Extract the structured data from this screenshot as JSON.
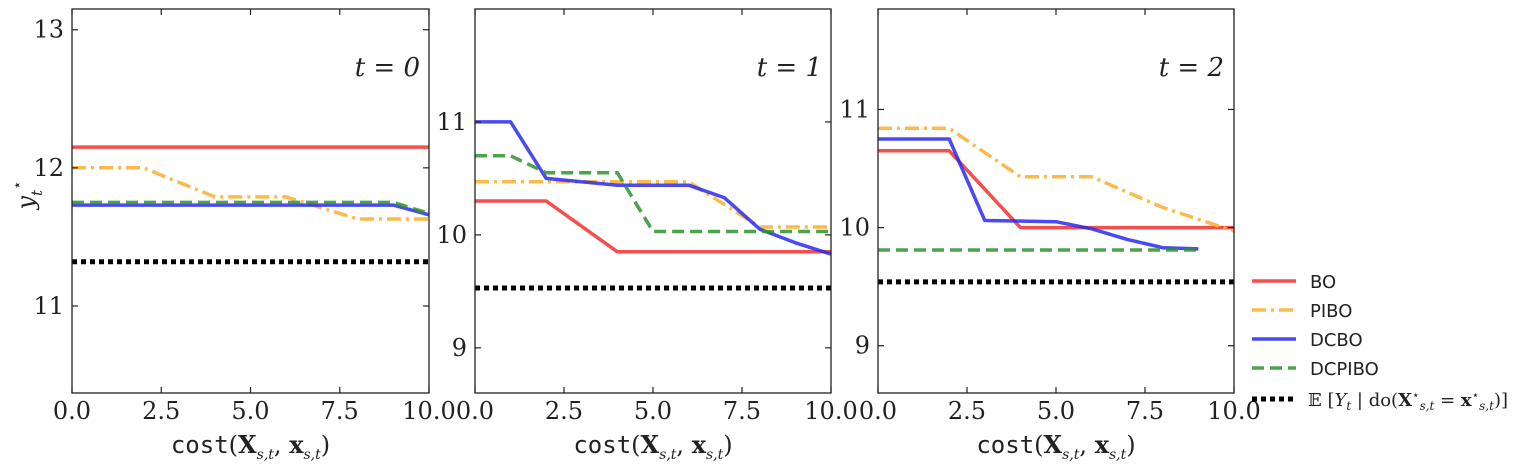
{
  "chart_data": [
    {
      "type": "line",
      "panel_label": "t = 0",
      "xlabel": "cost(X_{s,t}, x_{s,t})",
      "ylabel": "y_t^*",
      "xlim": [
        0,
        10
      ],
      "ylim": [
        10.37,
        13.15
      ],
      "xticks": [
        0,
        2.5,
        5,
        7.5,
        10
      ],
      "xtick_labels": [
        "0.0",
        "2.5",
        "5.0",
        "7.5",
        "10.0"
      ],
      "yticks": [
        11,
        12,
        13
      ],
      "ytick_labels": [
        "11",
        "12",
        "13"
      ],
      "series": [
        {
          "name": "BO",
          "x": [
            0,
            10
          ],
          "y": [
            12.15,
            12.15
          ]
        },
        {
          "name": "PIBO",
          "x": [
            0,
            2,
            4,
            6,
            8,
            10
          ],
          "y": [
            12.0,
            12.0,
            11.79,
            11.79,
            11.63,
            11.63
          ]
        },
        {
          "name": "DCBO",
          "x": [
            0,
            9,
            10
          ],
          "y": [
            11.73,
            11.73,
            11.66
          ]
        },
        {
          "name": "DCPIBO",
          "x": [
            0,
            9,
            10
          ],
          "y": [
            11.75,
            11.75,
            11.67
          ]
        },
        {
          "name": "E[Y_t | do(X*_{s,t} = x*_{s,t})]",
          "x": [
            0,
            10
          ],
          "y": [
            11.32,
            11.32
          ]
        }
      ]
    },
    {
      "type": "line",
      "panel_label": "t = 1",
      "xlabel": "cost(X_{s,t}, x_{s,t})",
      "xlim": [
        0,
        10
      ],
      "ylim": [
        8.6,
        12.0
      ],
      "xticks": [
        0,
        2.5,
        5,
        7.5,
        10
      ],
      "xtick_labels": [
        "0.0",
        "2.5",
        "5.0",
        "7.5",
        "10.0"
      ],
      "yticks": [
        9,
        10,
        11
      ],
      "ytick_labels": [
        "9",
        "10",
        "11"
      ],
      "series": [
        {
          "name": "BO",
          "x": [
            0,
            2,
            4,
            10
          ],
          "y": [
            10.3,
            10.3,
            9.85,
            9.85
          ]
        },
        {
          "name": "PIBO",
          "x": [
            0,
            2,
            6,
            8,
            10
          ],
          "y": [
            10.47,
            10.47,
            10.47,
            10.07,
            10.07
          ]
        },
        {
          "name": "DCBO",
          "x": [
            0,
            1,
            2,
            4,
            6,
            7,
            8,
            9,
            10
          ],
          "y": [
            11.0,
            11.0,
            10.5,
            10.44,
            10.44,
            10.33,
            10.05,
            9.93,
            9.83
          ]
        },
        {
          "name": "DCPIBO",
          "x": [
            0,
            1,
            2,
            4,
            5,
            10
          ],
          "y": [
            10.7,
            10.7,
            10.55,
            10.55,
            10.03,
            10.03
          ]
        },
        {
          "name": "E[Y_t | do(X*_{s,t} = x*_{s,t})]",
          "x": [
            0,
            10
          ],
          "y": [
            9.53,
            9.53
          ]
        }
      ]
    },
    {
      "type": "line",
      "panel_label": "t = 2",
      "xlabel": "cost(X_{s,t}, x_{s,t})",
      "xlim": [
        0,
        10
      ],
      "ylim": [
        8.6,
        11.85
      ],
      "xticks": [
        0,
        2.5,
        5,
        7.5,
        10
      ],
      "xtick_labels": [
        "0.0",
        "2.5",
        "5.0",
        "7.5",
        "10.0"
      ],
      "yticks": [
        9,
        10,
        11
      ],
      "ytick_labels": [
        "9",
        "10",
        "11"
      ],
      "series": [
        {
          "name": "BO",
          "x": [
            0,
            2,
            4,
            10
          ],
          "y": [
            10.65,
            10.65,
            10.0,
            10.0
          ]
        },
        {
          "name": "PIBO",
          "x": [
            0,
            2,
            4,
            6,
            8,
            10
          ],
          "y": [
            10.84,
            10.84,
            10.43,
            10.43,
            10.17,
            9.97
          ]
        },
        {
          "name": "DCBO",
          "x": [
            0,
            2,
            3,
            5,
            6,
            7,
            8,
            9
          ],
          "y": [
            10.75,
            10.75,
            10.06,
            10.05,
            9.99,
            9.9,
            9.83,
            9.82
          ]
        },
        {
          "name": "DCPIBO",
          "x": [
            0,
            9
          ],
          "y": [
            9.81,
            9.81
          ]
        },
        {
          "name": "E[Y_t | do(X*_{s,t} = x*_{s,t})]",
          "x": [
            0,
            10
          ],
          "y": [
            9.54,
            9.54
          ]
        }
      ]
    }
  ],
  "legend": {
    "placement": "right",
    "items": [
      {
        "label": "BO",
        "color": "#f0302f",
        "dash": "solid"
      },
      {
        "label": "PIBO",
        "color": "#fbb339",
        "dash": "dashdot"
      },
      {
        "label": "DCBO",
        "color": "#2a2af2",
        "dash": "solid"
      },
      {
        "label": "DCPIBO",
        "color": "#2e922e",
        "dash": "dashed"
      },
      {
        "label": "𝔼 [Y_t | do(X*_{s,t} = x*_{s,t})]",
        "color": "#000000",
        "dash": "dotted"
      }
    ]
  }
}
